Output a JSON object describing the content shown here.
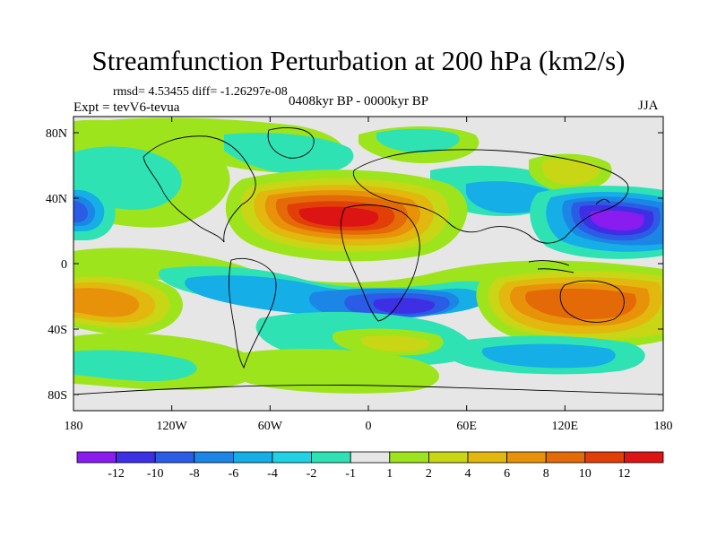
{
  "title": "Streamfunction Perturbation at 200 hPa (km2/s)",
  "stats": "rmsd= 4.53455 diff= -1.26297e-08",
  "experiment": "Expt = tevV6-tevua",
  "period": "0408kyr BP - 0000kyr BP",
  "season": "JJA",
  "axes": {
    "x_ticks": [
      "180",
      "120W",
      "60W",
      "0",
      "60E",
      "120E",
      "180"
    ],
    "y_ticks": [
      "80N",
      "40N",
      "0",
      "40S",
      "80S"
    ]
  },
  "colorbar": {
    "labels": [
      "-12",
      "-10",
      "-8",
      "-6",
      "-4",
      "-2",
      "-1",
      "1",
      "2",
      "4",
      "6",
      "8",
      "10",
      "12"
    ],
    "colors": [
      "#8a1cf0",
      "#3c2fe4",
      "#2b5ce6",
      "#1c86e6",
      "#15aee6",
      "#1fd2e4",
      "#2fe2b4",
      "#e6e6e6",
      "#9ee41c",
      "#c8d616",
      "#e2b80e",
      "#e8920a",
      "#e46a08",
      "#e23e08",
      "#dc1414"
    ]
  },
  "colors": {
    "neutral": "#e6e6e6",
    "coastline": "#000000"
  }
}
